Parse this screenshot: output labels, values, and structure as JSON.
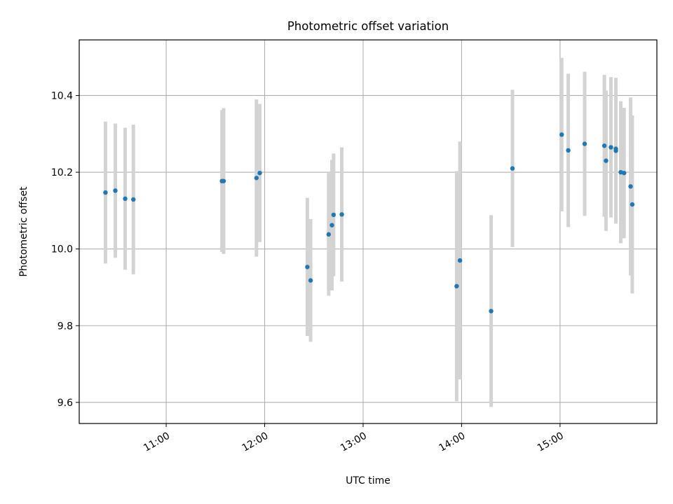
{
  "chart_data": {
    "type": "scatter",
    "title": "Photometric offset variation",
    "xlabel": "UTC time",
    "ylabel": "Photometric offset",
    "x_is_time": true,
    "xlim": [
      "10:07",
      "15:59"
    ],
    "ylim": [
      9.545,
      10.545
    ],
    "xticks": [
      "11:00",
      "12:00",
      "13:00",
      "14:00",
      "15:00"
    ],
    "yticks": [
      9.6,
      9.8,
      10.0,
      10.2,
      10.4
    ],
    "ytick_labels": [
      "9.6",
      "9.8",
      "10.0",
      "10.2",
      "10.4"
    ],
    "grid": true,
    "point_color": "#1f77b4",
    "errorbar_color": "#d3d3d3",
    "points": [
      {
        "x": "10:23",
        "y": 10.147,
        "err": 0.185
      },
      {
        "x": "10:29",
        "y": 10.152,
        "err": 0.175
      },
      {
        "x": "10:35",
        "y": 10.131,
        "err": 0.185
      },
      {
        "x": "10:40",
        "y": 10.129,
        "err": 0.195
      },
      {
        "x": "11:34",
        "y": 10.177,
        "err": 0.185
      },
      {
        "x": "11:35",
        "y": 10.177,
        "err": 0.19
      },
      {
        "x": "11:55",
        "y": 10.185,
        "err": 0.205
      },
      {
        "x": "11:57",
        "y": 10.198,
        "err": 0.18
      },
      {
        "x": "12:26",
        "y": 9.953,
        "err": 0.18
      },
      {
        "x": "12:28",
        "y": 9.918,
        "err": 0.16
      },
      {
        "x": "12:39",
        "y": 10.038,
        "err": 0.16
      },
      {
        "x": "12:41",
        "y": 10.062,
        "err": 0.17
      },
      {
        "x": "12:42",
        "y": 10.089,
        "err": 0.16
      },
      {
        "x": "12:47",
        "y": 10.09,
        "err": 0.175
      },
      {
        "x": "13:57",
        "y": 9.903,
        "err": 0.3
      },
      {
        "x": "13:59",
        "y": 9.97,
        "err": 0.31
      },
      {
        "x": "14:18",
        "y": 9.838,
        "err": 0.25
      },
      {
        "x": "14:31",
        "y": 10.21,
        "err": 0.205
      },
      {
        "x": "15:01",
        "y": 10.298,
        "err": 0.2
      },
      {
        "x": "15:05",
        "y": 10.257,
        "err": 0.2
      },
      {
        "x": "15:15",
        "y": 10.274,
        "err": 0.188
      },
      {
        "x": "15:27",
        "y": 10.269,
        "err": 0.185
      },
      {
        "x": "15:28",
        "y": 10.23,
        "err": 0.183
      },
      {
        "x": "15:31",
        "y": 10.265,
        "err": 0.183
      },
      {
        "x": "15:34",
        "y": 10.261,
        "err": 0.185
      },
      {
        "x": "15:34",
        "y": 10.256,
        "err": 0.19
      },
      {
        "x": "15:37",
        "y": 10.2,
        "err": 0.185
      },
      {
        "x": "15:39",
        "y": 10.198,
        "err": 0.17
      },
      {
        "x": "15:43",
        "y": 10.163,
        "err": 0.232
      },
      {
        "x": "15:44",
        "y": 10.116,
        "err": 0.232
      }
    ]
  }
}
